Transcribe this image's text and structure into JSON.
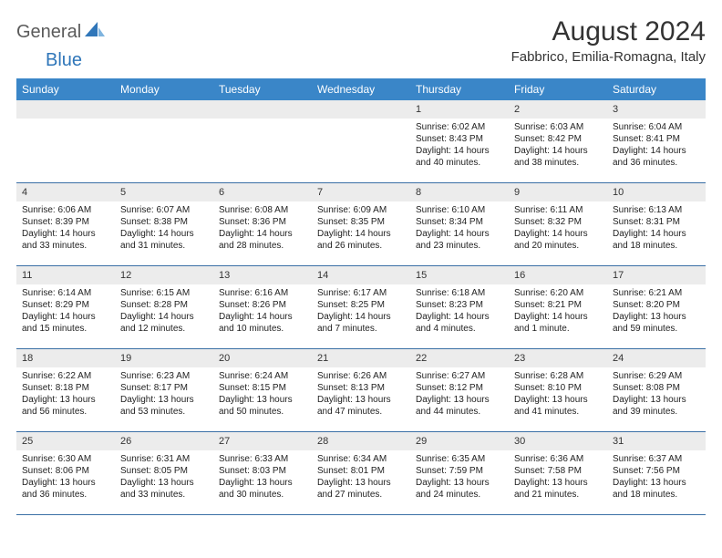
{
  "logo": {
    "general": "General",
    "blue": "Blue"
  },
  "title": "August 2024",
  "location": "Fabbrico, Emilia-Romagna, Italy",
  "colors": {
    "header_bg": "#3a86c8",
    "header_text": "#ffffff",
    "daynum_bg": "#ececec",
    "row_border": "#3a6fa5",
    "logo_gray": "#5a5a5a",
    "logo_blue": "#2f76b9",
    "text": "#222222"
  },
  "fonts": {
    "title_size_pt": 22,
    "location_size_pt": 11,
    "weekday_size_pt": 9,
    "daynum_size_pt": 8,
    "body_size_pt": 7.5
  },
  "weekdays": [
    "Sunday",
    "Monday",
    "Tuesday",
    "Wednesday",
    "Thursday",
    "Friday",
    "Saturday"
  ],
  "weeks": [
    [
      {
        "empty": true
      },
      {
        "empty": true
      },
      {
        "empty": true
      },
      {
        "empty": true
      },
      {
        "n": "1",
        "sunrise": "6:02 AM",
        "sunset": "8:43 PM",
        "daylight": "14 hours and 40 minutes."
      },
      {
        "n": "2",
        "sunrise": "6:03 AM",
        "sunset": "8:42 PM",
        "daylight": "14 hours and 38 minutes."
      },
      {
        "n": "3",
        "sunrise": "6:04 AM",
        "sunset": "8:41 PM",
        "daylight": "14 hours and 36 minutes."
      }
    ],
    [
      {
        "n": "4",
        "sunrise": "6:06 AM",
        "sunset": "8:39 PM",
        "daylight": "14 hours and 33 minutes."
      },
      {
        "n": "5",
        "sunrise": "6:07 AM",
        "sunset": "8:38 PM",
        "daylight": "14 hours and 31 minutes."
      },
      {
        "n": "6",
        "sunrise": "6:08 AM",
        "sunset": "8:36 PM",
        "daylight": "14 hours and 28 minutes."
      },
      {
        "n": "7",
        "sunrise": "6:09 AM",
        "sunset": "8:35 PM",
        "daylight": "14 hours and 26 minutes."
      },
      {
        "n": "8",
        "sunrise": "6:10 AM",
        "sunset": "8:34 PM",
        "daylight": "14 hours and 23 minutes."
      },
      {
        "n": "9",
        "sunrise": "6:11 AM",
        "sunset": "8:32 PM",
        "daylight": "14 hours and 20 minutes."
      },
      {
        "n": "10",
        "sunrise": "6:13 AM",
        "sunset": "8:31 PM",
        "daylight": "14 hours and 18 minutes."
      }
    ],
    [
      {
        "n": "11",
        "sunrise": "6:14 AM",
        "sunset": "8:29 PM",
        "daylight": "14 hours and 15 minutes."
      },
      {
        "n": "12",
        "sunrise": "6:15 AM",
        "sunset": "8:28 PM",
        "daylight": "14 hours and 12 minutes."
      },
      {
        "n": "13",
        "sunrise": "6:16 AM",
        "sunset": "8:26 PM",
        "daylight": "14 hours and 10 minutes."
      },
      {
        "n": "14",
        "sunrise": "6:17 AM",
        "sunset": "8:25 PM",
        "daylight": "14 hours and 7 minutes."
      },
      {
        "n": "15",
        "sunrise": "6:18 AM",
        "sunset": "8:23 PM",
        "daylight": "14 hours and 4 minutes."
      },
      {
        "n": "16",
        "sunrise": "6:20 AM",
        "sunset": "8:21 PM",
        "daylight": "14 hours and 1 minute."
      },
      {
        "n": "17",
        "sunrise": "6:21 AM",
        "sunset": "8:20 PM",
        "daylight": "13 hours and 59 minutes."
      }
    ],
    [
      {
        "n": "18",
        "sunrise": "6:22 AM",
        "sunset": "8:18 PM",
        "daylight": "13 hours and 56 minutes."
      },
      {
        "n": "19",
        "sunrise": "6:23 AM",
        "sunset": "8:17 PM",
        "daylight": "13 hours and 53 minutes."
      },
      {
        "n": "20",
        "sunrise": "6:24 AM",
        "sunset": "8:15 PM",
        "daylight": "13 hours and 50 minutes."
      },
      {
        "n": "21",
        "sunrise": "6:26 AM",
        "sunset": "8:13 PM",
        "daylight": "13 hours and 47 minutes."
      },
      {
        "n": "22",
        "sunrise": "6:27 AM",
        "sunset": "8:12 PM",
        "daylight": "13 hours and 44 minutes."
      },
      {
        "n": "23",
        "sunrise": "6:28 AM",
        "sunset": "8:10 PM",
        "daylight": "13 hours and 41 minutes."
      },
      {
        "n": "24",
        "sunrise": "6:29 AM",
        "sunset": "8:08 PM",
        "daylight": "13 hours and 39 minutes."
      }
    ],
    [
      {
        "n": "25",
        "sunrise": "6:30 AM",
        "sunset": "8:06 PM",
        "daylight": "13 hours and 36 minutes."
      },
      {
        "n": "26",
        "sunrise": "6:31 AM",
        "sunset": "8:05 PM",
        "daylight": "13 hours and 33 minutes."
      },
      {
        "n": "27",
        "sunrise": "6:33 AM",
        "sunset": "8:03 PM",
        "daylight": "13 hours and 30 minutes."
      },
      {
        "n": "28",
        "sunrise": "6:34 AM",
        "sunset": "8:01 PM",
        "daylight": "13 hours and 27 minutes."
      },
      {
        "n": "29",
        "sunrise": "6:35 AM",
        "sunset": "7:59 PM",
        "daylight": "13 hours and 24 minutes."
      },
      {
        "n": "30",
        "sunrise": "6:36 AM",
        "sunset": "7:58 PM",
        "daylight": "13 hours and 21 minutes."
      },
      {
        "n": "31",
        "sunrise": "6:37 AM",
        "sunset": "7:56 PM",
        "daylight": "13 hours and 18 minutes."
      }
    ]
  ],
  "labels": {
    "sunrise": "Sunrise:",
    "sunset": "Sunset:",
    "daylight": "Daylight:"
  }
}
